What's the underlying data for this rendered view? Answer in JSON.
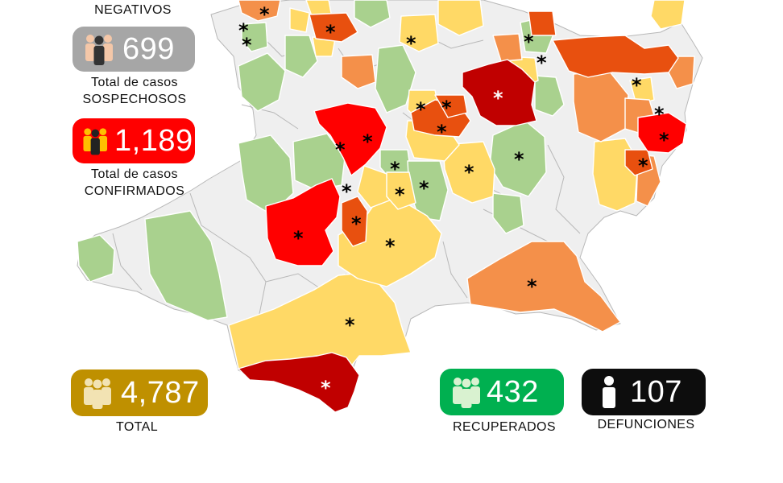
{
  "colors": {
    "no_cases": "#f0f0f0",
    "green": "#a9d18e",
    "yellow": "#ffd966",
    "orange": "#f4904a",
    "dark_orange": "#e8500f",
    "red": "#ff0000",
    "dark_red": "#c00000",
    "border": "#ffffff"
  },
  "legend_icons": {
    "people": "people-group-icon",
    "person": "person-icon",
    "marker": "asterisk-marker-icon"
  },
  "stats": {
    "negativos": {
      "label": "NEGATIVOS"
    },
    "sospechosos": {
      "value": "699",
      "label_line1": "Total de casos",
      "label_line2": "SOSPECHOSOS",
      "color": "#a6a6a6"
    },
    "confirmados": {
      "value": "1,189",
      "label_line1": "Total de casos",
      "label_line2": "CONFIRMADOS",
      "color": "#ff0000"
    },
    "total": {
      "value": "4,787",
      "label": "TOTAL",
      "color": "#bf9000"
    },
    "recuperados": {
      "value": "432",
      "label": "RECUPERADOS",
      "color": "#00b050"
    },
    "defunciones": {
      "value": "107",
      "label": "DEFUNCIONES",
      "color": "#0d0d0d"
    }
  },
  "markers": [
    {
      "symbol": "*",
      "color": "#000000"
    },
    {
      "symbol": "*",
      "color": "#ffffff"
    }
  ]
}
